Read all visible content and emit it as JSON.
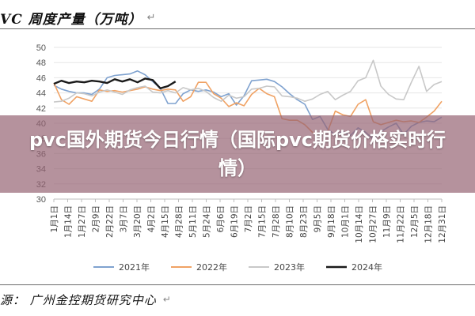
{
  "header": {
    "title": "VC 周度产量（万吨）",
    "return_mark": "↵"
  },
  "overlay": {
    "headline": "pvc国外期货今日行情（国际pvc期货价格实时行情）"
  },
  "footer": {
    "source": "源：  广州金控期货研究中心",
    "return_mark": "↵"
  },
  "chart_data": {
    "type": "line",
    "ylim": [
      30,
      50
    ],
    "yticks": [
      30,
      32,
      34,
      36,
      38,
      40,
      42,
      44,
      46,
      48,
      50
    ],
    "categories": [
      "1月1日",
      "1月14日",
      "1月27日",
      "2月9日",
      "2月22日",
      "3月7日",
      "3月20日",
      "4月2日",
      "4月15日",
      "4月28日",
      "5月11日",
      "5月24日",
      "6月6日",
      "6月19日",
      "7月2日",
      "7月15日",
      "7月28日",
      "8月10日",
      "8月23日",
      "9月5日",
      "9月18日",
      "10月1日",
      "10月14日",
      "10月27日",
      "11月9日",
      "11月22日",
      "12月5日",
      "12月18日",
      "12月31日"
    ],
    "legend_position": "bottom",
    "series": [
      {
        "name": "2021年",
        "color": "#7fa2cf",
        "x": [
          1,
          2,
          3,
          4,
          5,
          6,
          7,
          8,
          9,
          10,
          11,
          12,
          13,
          14,
          15,
          16,
          17,
          18,
          19,
          20,
          21,
          22,
          23,
          24,
          25,
          26,
          27,
          28,
          29,
          30,
          31,
          32,
          33,
          34,
          35,
          36,
          37,
          38,
          39,
          40,
          41,
          42,
          43,
          44,
          45,
          46,
          47,
          48,
          49,
          50,
          51,
          52
        ],
        "values": [
          45,
          44.5,
          44.2,
          44,
          44,
          43.8,
          44.5,
          46,
          46.3,
          46.4,
          46.5,
          46.9,
          46.4,
          45.5,
          44.6,
          42.6,
          42.6,
          43.9,
          44.4,
          44.2,
          44.4,
          44.1,
          43.5,
          43.9,
          42.4,
          43.6,
          45.6,
          45.7,
          45.8,
          45.5,
          44.8,
          43.9,
          43.1,
          42.5,
          40.5,
          40.9,
          39.2,
          38.5,
          38.9,
          38.4,
          39.4,
          38.8,
          37.9,
          38.9,
          39.5,
          40,
          38.5,
          39.6,
          40.1,
          40.3,
          40.2,
          40.8
        ]
      },
      {
        "name": "2022年",
        "color": "#f0a264",
        "x": [
          1,
          2,
          3,
          4,
          5,
          6,
          7,
          8,
          9,
          10,
          11,
          12,
          13,
          14,
          15,
          16,
          17,
          18,
          19,
          20,
          21,
          22,
          23,
          24,
          25,
          26,
          27,
          28,
          29,
          30,
          31,
          32,
          33,
          34,
          35,
          36,
          37,
          38,
          39,
          40,
          41,
          42,
          43,
          44,
          45,
          46,
          47,
          48,
          49,
          50,
          51,
          52
        ],
        "values": [
          45.3,
          43.1,
          42.5,
          43.5,
          43.2,
          42.9,
          44.4,
          44.2,
          44.3,
          44.1,
          44.3,
          44.5,
          44.8,
          44.5,
          44.3,
          44.5,
          44.4,
          42.9,
          43.5,
          45.4,
          45.4,
          43.9,
          43.3,
          42.2,
          42.7,
          42.3,
          43.8,
          44.6,
          43.9,
          43.5,
          40.6,
          40.4,
          40.4,
          39.8,
          38.8,
          38.6,
          38.9,
          41.6,
          41.1,
          40.9,
          42.5,
          43.1,
          40.2,
          39.8,
          40.1,
          40.4,
          40.2,
          40.3,
          40.1,
          40.8,
          41.6,
          42.9
        ]
      },
      {
        "name": "2023年",
        "color": "#c8c8c8",
        "x": [
          1,
          2,
          3,
          4,
          5,
          6,
          7,
          8,
          9,
          10,
          11,
          12,
          13,
          14,
          15,
          16,
          17,
          18,
          19,
          20,
          21,
          22,
          23,
          24,
          25,
          26,
          27,
          28,
          29,
          30,
          31,
          32,
          33,
          34,
          35,
          36,
          37,
          38,
          39,
          40,
          41,
          42,
          43,
          44,
          45,
          46,
          47,
          48,
          49,
          50,
          51,
          52
        ],
        "values": [
          42.8,
          42.9,
          43.3,
          44,
          43.9,
          43.6,
          44.1,
          44.4,
          44.1,
          43.8,
          44.4,
          44.7,
          44.9,
          44.1,
          44,
          44.3,
          44,
          44.7,
          44.4,
          44.6,
          44.2,
          43.4,
          42.9,
          43.7,
          43.3,
          43.5,
          44.5,
          44.6,
          44.9,
          44.8,
          43.6,
          43.5,
          43.3,
          42.9,
          43.2,
          43.8,
          44.2,
          43.1,
          43.7,
          44.2,
          45.6,
          46,
          48.3,
          44.9,
          43.8,
          43.2,
          43.1,
          45.4,
          47.5,
          44.2,
          45.1,
          45.5
        ]
      },
      {
        "name": "2024年",
        "color": "#1a1a1a",
        "x": [
          1,
          2,
          3,
          4,
          5,
          6,
          7,
          8,
          9,
          10,
          11,
          12,
          13,
          14,
          15,
          16,
          17
        ],
        "values": [
          45.2,
          45.6,
          45.3,
          45.5,
          45.4,
          45.6,
          45.5,
          45.3,
          45.8,
          45.5,
          45.8,
          45.4,
          45.9,
          45.7,
          44.6,
          44.9,
          45.5
        ]
      }
    ]
  }
}
